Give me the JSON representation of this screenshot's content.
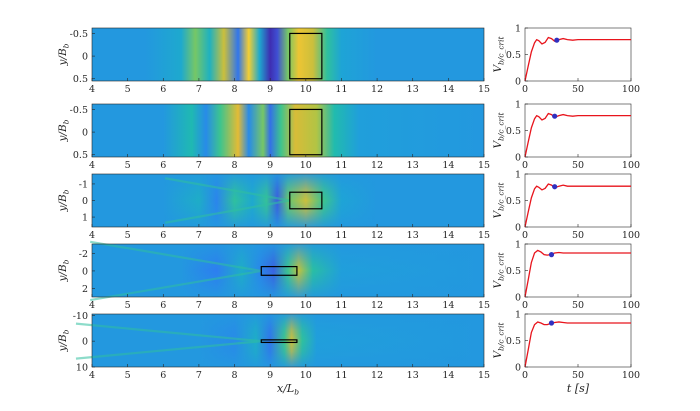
{
  "figure": {
    "colors": {
      "colormap": [
        "#3e26a8",
        "#3f54d8",
        "#2d7ff0",
        "#1ea3d8",
        "#1fbab0",
        "#3fc58c",
        "#9dc84a",
        "#e3ba35",
        "#fbd833",
        "#f9fb0e"
      ],
      "background_level": 0.3,
      "curve": "#e8141c",
      "marker": "#3030c0",
      "box": "#000000",
      "axis": "#262626"
    }
  },
  "chart_data": [
    {
      "type": "heatmap",
      "panel": 1,
      "xlabel": "",
      "ylabel": "y/B_b",
      "xticks": [
        4,
        5,
        6,
        7,
        8,
        9,
        10,
        11,
        12,
        13,
        14,
        15
      ],
      "yticks": [
        "-0.5",
        "0",
        "0.5"
      ],
      "xlim": [
        4,
        15
      ],
      "ylim": [
        -0.62,
        0.55
      ],
      "box": {
        "x": [
          9.55,
          10.45
        ],
        "y": [
          -0.5,
          0.5
        ]
      },
      "field": "vertical bands, value varies with x only",
      "profile_x": [
        4.0,
        5.5,
        6.5,
        6.9,
        7.3,
        7.7,
        8.1,
        8.4,
        8.7,
        9.0,
        9.2,
        9.5,
        9.8,
        10.2,
        10.6,
        11.0,
        12.0,
        15.0
      ],
      "profile_v": [
        0.3,
        0.3,
        0.36,
        0.62,
        0.4,
        0.74,
        0.2,
        0.85,
        0.36,
        0.02,
        0.1,
        0.62,
        0.82,
        0.74,
        0.5,
        0.34,
        0.3,
        0.3
      ]
    },
    {
      "type": "heatmap",
      "panel": 2,
      "xlabel": "",
      "ylabel": "y/B_b",
      "xticks": [
        4,
        5,
        6,
        7,
        8,
        9,
        10,
        11,
        12,
        13,
        14,
        15
      ],
      "yticks": [
        "-0.5",
        "0",
        "0.5"
      ],
      "xlim": [
        4,
        15
      ],
      "ylim": [
        -0.62,
        0.55
      ],
      "box": {
        "x": [
          9.55,
          10.45
        ],
        "y": [
          -0.5,
          0.5
        ]
      },
      "field": "vertical bands with slight lateral variation",
      "profile_x": [
        4.0,
        6.0,
        6.8,
        7.2,
        7.6,
        8.1,
        8.4,
        8.8,
        9.0,
        9.3,
        9.7,
        10.3,
        10.8,
        11.5,
        15.0
      ],
      "profile_v": [
        0.3,
        0.3,
        0.44,
        0.26,
        0.55,
        0.78,
        0.26,
        0.62,
        0.18,
        0.55,
        0.76,
        0.7,
        0.45,
        0.32,
        0.3
      ]
    },
    {
      "type": "heatmap",
      "panel": 3,
      "xlabel": "",
      "ylabel": "y/B_b",
      "xticks": [
        4,
        5,
        6,
        7,
        8,
        9,
        10,
        11,
        12,
        13,
        14,
        15
      ],
      "yticks": [
        "-1",
        "0",
        "1"
      ],
      "xlim": [
        4,
        15
      ],
      "ylim": [
        -1.6,
        1.6
      ],
      "box": {
        "x": [
          9.55,
          10.45
        ],
        "y": [
          -0.5,
          0.5
        ]
      },
      "field": "interference pattern downstream of box",
      "profile_x": [
        4.0,
        6.0,
        7.0,
        7.5,
        8.0,
        8.5,
        8.9,
        9.2,
        9.5,
        10.0,
        10.5,
        11.0,
        12.0,
        15.0
      ],
      "profile_v": [
        0.3,
        0.3,
        0.38,
        0.24,
        0.5,
        0.36,
        0.52,
        0.14,
        0.6,
        0.74,
        0.55,
        0.34,
        0.3,
        0.3
      ]
    },
    {
      "type": "heatmap",
      "panel": 4,
      "xlabel": "",
      "ylabel": "y/B_b",
      "xticks": [
        4,
        5,
        6,
        7,
        8,
        9,
        10,
        11,
        12,
        13,
        14,
        15
      ],
      "yticks": [
        "-2",
        "0",
        "2"
      ],
      "xlim": [
        4,
        15
      ],
      "ylim": [
        -3.1,
        3.0
      ],
      "box": {
        "x": [
          8.75,
          9.75
        ],
        "y": [
          -0.5,
          0.5
        ]
      },
      "field": "Kelvin-type wedge wake downstream of box",
      "profile_x": [
        4.0,
        6.5,
        7.5,
        8.2,
        8.7,
        9.1,
        9.5,
        9.8,
        10.2,
        11.0,
        15.0
      ],
      "profile_v": [
        0.3,
        0.3,
        0.22,
        0.38,
        0.25,
        0.15,
        0.55,
        0.72,
        0.48,
        0.32,
        0.3
      ]
    },
    {
      "type": "heatmap",
      "panel": 5,
      "xlabel": "x/L_b",
      "ylabel": "y/B_b",
      "xticks": [
        4,
        5,
        6,
        7,
        8,
        9,
        10,
        11,
        12,
        13,
        14,
        15
      ],
      "yticks": [
        "-10",
        "0",
        "10"
      ],
      "xlim": [
        4,
        15
      ],
      "ylim": [
        -10.5,
        10
      ],
      "box": {
        "x": [
          8.75,
          9.75
        ],
        "y": [
          -0.5,
          0.5
        ]
      },
      "field": "narrow Kelvin wedge wake",
      "profile_x": [
        4.0,
        7.0,
        8.0,
        8.6,
        9.0,
        9.4,
        9.6,
        9.9,
        10.3,
        15.0
      ],
      "profile_v": [
        0.3,
        0.3,
        0.26,
        0.38,
        0.2,
        0.55,
        0.74,
        0.5,
        0.32,
        0.3
      ]
    },
    {
      "type": "line",
      "panel": 1,
      "xlabel": "",
      "ylabel": "V_b/c_crit",
      "xlim": [
        0,
        100
      ],
      "ylim": [
        0,
        1
      ],
      "xticks": [
        "0",
        "50",
        "100"
      ],
      "yticks": [
        "0",
        "0.5",
        "1"
      ],
      "series": [
        {
          "x": [
            0,
            3,
            6,
            9,
            11,
            13,
            16,
            19,
            22,
            25,
            28,
            32,
            36,
            40,
            45,
            50,
            60,
            70,
            80,
            90,
            100
          ],
          "y": [
            0.0,
            0.28,
            0.55,
            0.72,
            0.78,
            0.76,
            0.7,
            0.73,
            0.82,
            0.8,
            0.75,
            0.78,
            0.8,
            0.78,
            0.77,
            0.78,
            0.78,
            0.78,
            0.78,
            0.78,
            0.78
          ]
        }
      ],
      "marker": {
        "x": 30,
        "y": 0.77
      }
    },
    {
      "type": "line",
      "panel": 2,
      "xlabel": "",
      "ylabel": "V_b/c_crit",
      "xlim": [
        0,
        100
      ],
      "ylim": [
        0,
        1
      ],
      "xticks": [
        "0",
        "50",
        "100"
      ],
      "yticks": [
        "0",
        "0.5",
        "1"
      ],
      "series": [
        {
          "x": [
            0,
            3,
            6,
            9,
            11,
            13,
            16,
            19,
            22,
            25,
            28,
            32,
            36,
            40,
            45,
            50,
            60,
            70,
            80,
            90,
            100
          ],
          "y": [
            0.0,
            0.28,
            0.55,
            0.72,
            0.78,
            0.76,
            0.7,
            0.73,
            0.82,
            0.8,
            0.75,
            0.78,
            0.8,
            0.78,
            0.77,
            0.78,
            0.78,
            0.78,
            0.78,
            0.78,
            0.78
          ]
        }
      ],
      "marker": {
        "x": 28,
        "y": 0.77
      }
    },
    {
      "type": "line",
      "panel": 3,
      "xlabel": "",
      "ylabel": "V_b/c_crit",
      "xlim": [
        0,
        100
      ],
      "ylim": [
        0,
        1
      ],
      "xticks": [
        "0",
        "50",
        "100"
      ],
      "yticks": [
        "0",
        "0.5",
        "1"
      ],
      "series": [
        {
          "x": [
            0,
            3,
            6,
            9,
            11,
            13,
            16,
            19,
            22,
            25,
            28,
            32,
            36,
            40,
            45,
            50,
            60,
            70,
            80,
            90,
            100
          ],
          "y": [
            0.0,
            0.28,
            0.55,
            0.72,
            0.77,
            0.75,
            0.7,
            0.73,
            0.81,
            0.79,
            0.74,
            0.77,
            0.79,
            0.77,
            0.77,
            0.77,
            0.77,
            0.77,
            0.77,
            0.77,
            0.77
          ]
        }
      ],
      "marker": {
        "x": 28,
        "y": 0.76
      }
    },
    {
      "type": "line",
      "panel": 4,
      "xlabel": "",
      "ylabel": "V_b/c_crit",
      "xlim": [
        0,
        100
      ],
      "ylim": [
        0,
        1
      ],
      "xticks": [
        "0",
        "50",
        "100"
      ],
      "yticks": [
        "0",
        "0.5",
        "1"
      ],
      "series": [
        {
          "x": [
            0,
            3,
            6,
            9,
            12,
            15,
            18,
            21,
            24,
            28,
            32,
            36,
            40,
            45,
            50,
            60,
            70,
            80,
            90,
            100
          ],
          "y": [
            0.0,
            0.32,
            0.65,
            0.83,
            0.88,
            0.85,
            0.8,
            0.79,
            0.8,
            0.83,
            0.84,
            0.83,
            0.83,
            0.83,
            0.83,
            0.83,
            0.83,
            0.83,
            0.83,
            0.83
          ]
        }
      ],
      "marker": {
        "x": 25,
        "y": 0.8
      }
    },
    {
      "type": "line",
      "panel": 5,
      "xlabel": "t [s]",
      "ylabel": "V_b/c_crit",
      "xlim": [
        0,
        100
      ],
      "ylim": [
        0,
        1
      ],
      "xticks": [
        "0",
        "50",
        "100"
      ],
      "yticks": [
        "0",
        "0.5",
        "1"
      ],
      "series": [
        {
          "x": [
            0,
            3,
            6,
            9,
            12,
            15,
            18,
            21,
            24,
            28,
            32,
            36,
            40,
            45,
            50,
            60,
            70,
            80,
            90,
            100
          ],
          "y": [
            0.0,
            0.32,
            0.65,
            0.8,
            0.85,
            0.83,
            0.8,
            0.8,
            0.82,
            0.84,
            0.85,
            0.84,
            0.83,
            0.83,
            0.83,
            0.83,
            0.83,
            0.83,
            0.83,
            0.83
          ]
        }
      ],
      "marker": {
        "x": 25,
        "y": 0.83
      }
    }
  ]
}
